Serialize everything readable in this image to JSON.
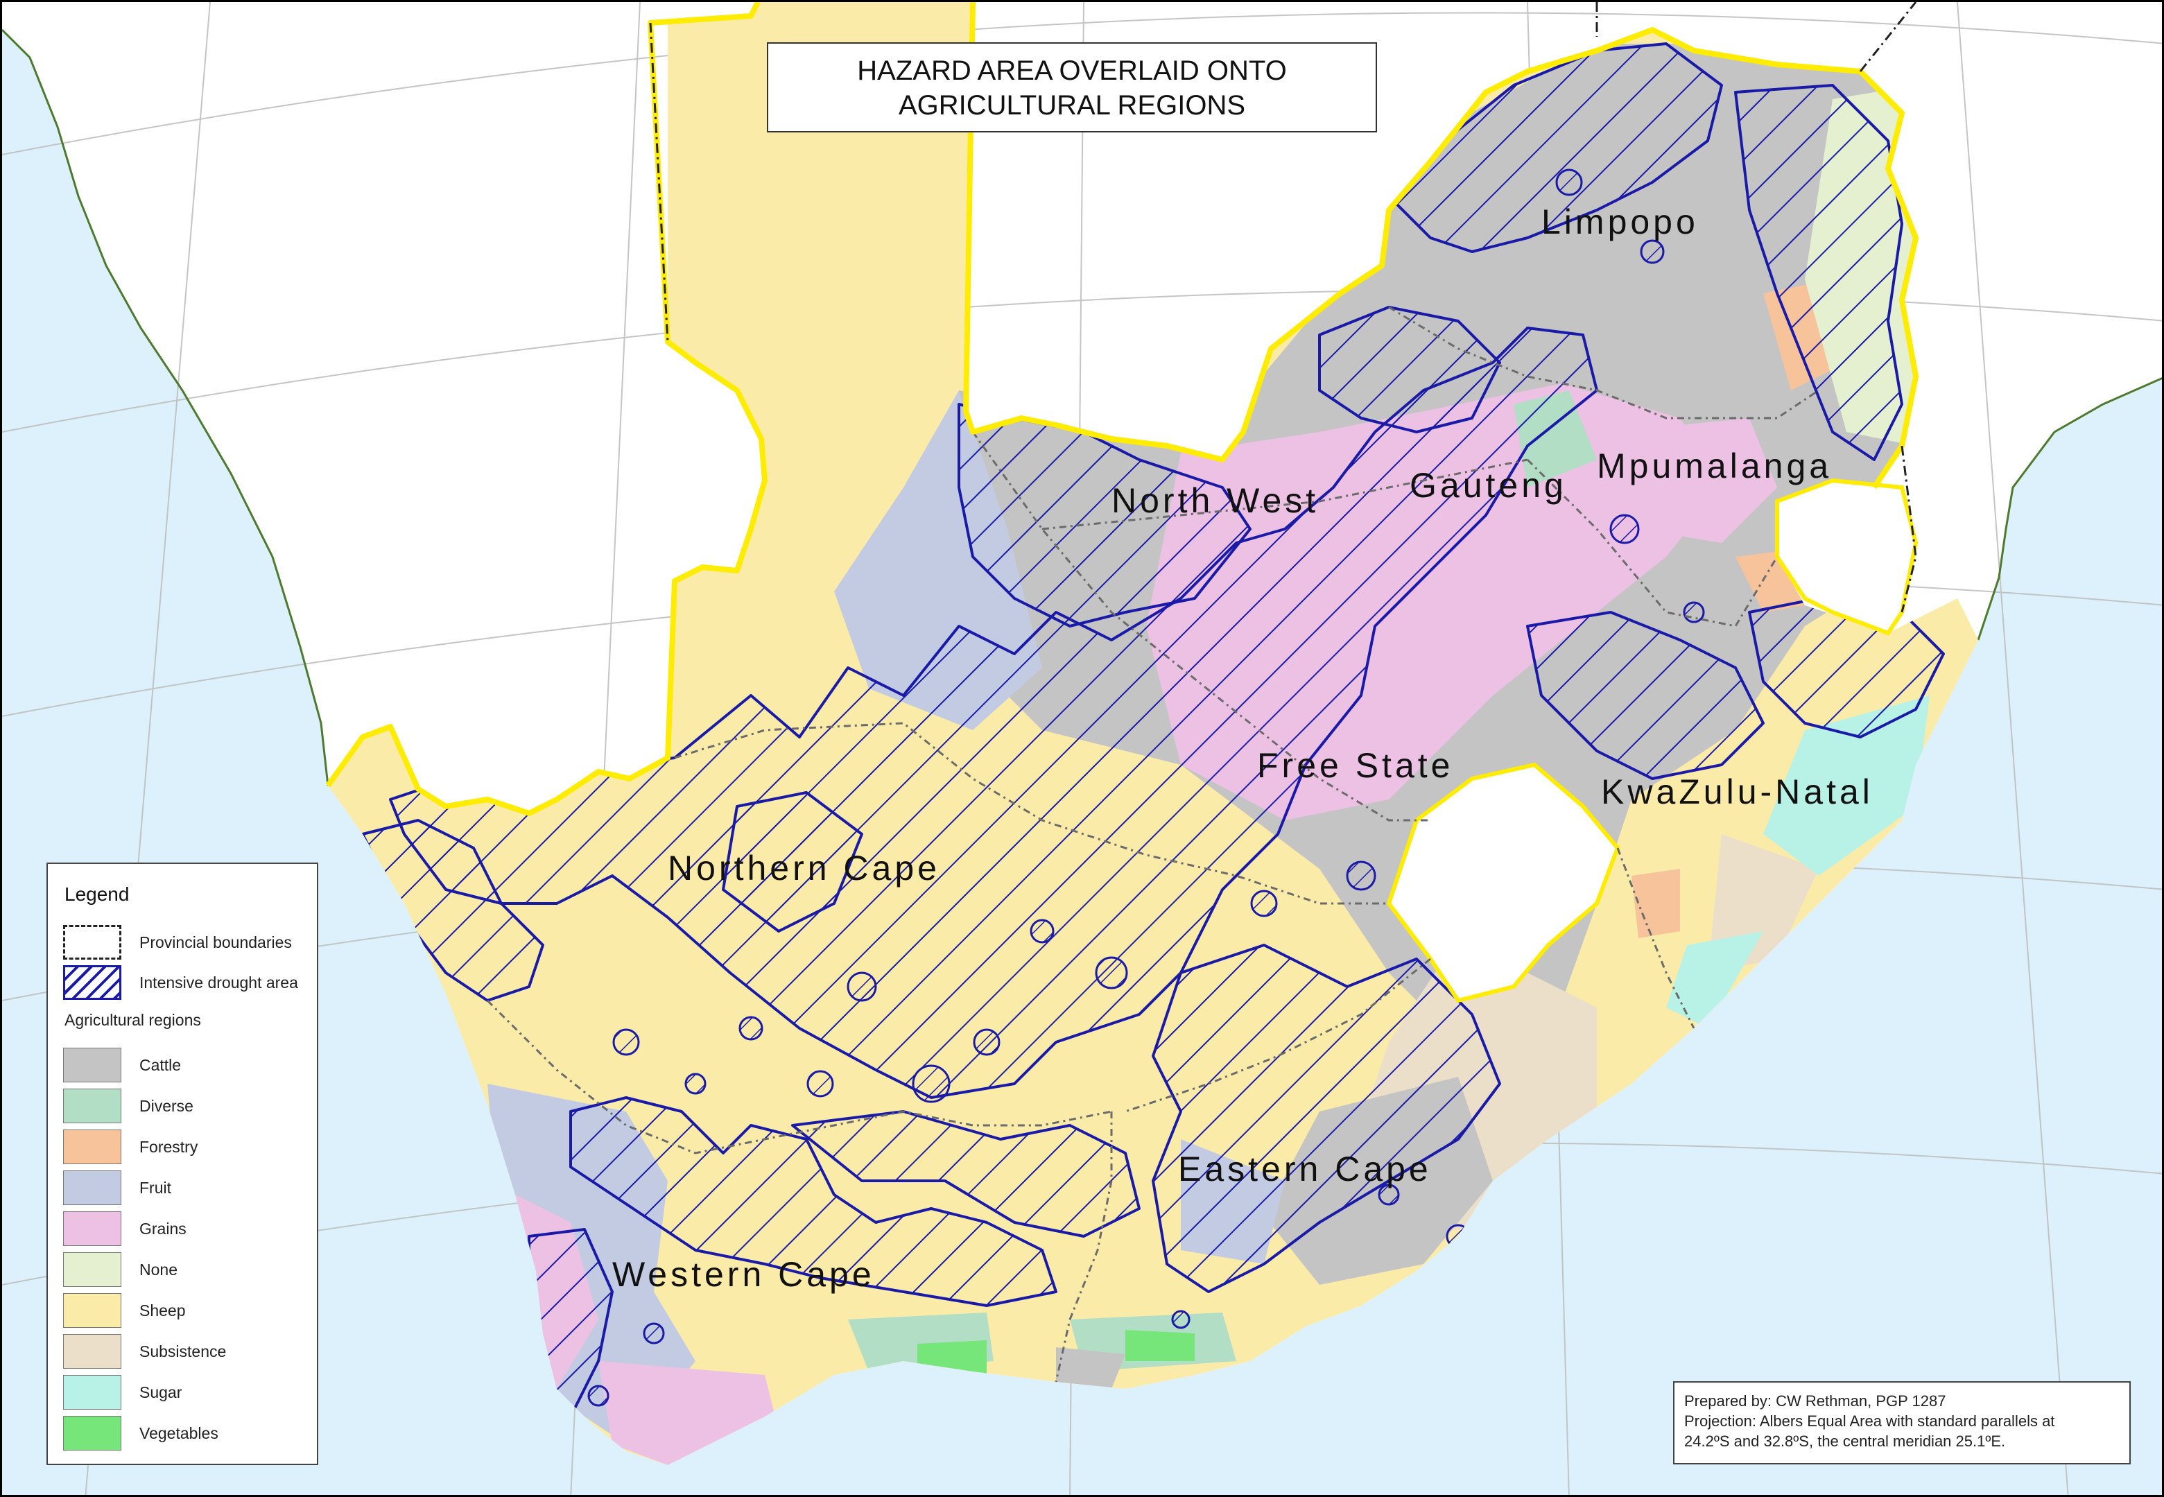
{
  "title": {
    "line1": "HAZARD AREA OVERLAID ONTO",
    "line2": "AGRICULTURAL REGIONS"
  },
  "provinces": [
    {
      "key": "limpopo",
      "label": "Limpopo"
    },
    {
      "key": "north_west",
      "label": "North West"
    },
    {
      "key": "gauteng",
      "label": "Gauteng"
    },
    {
      "key": "mpumalanga",
      "label": "Mpumalanga"
    },
    {
      "key": "free_state",
      "label": "Free State"
    },
    {
      "key": "kwazulu_natal",
      "label": "KwaZulu-Natal"
    },
    {
      "key": "northern_cape",
      "label": "Northern Cape"
    },
    {
      "key": "eastern_cape",
      "label": "Eastern Cape"
    },
    {
      "key": "western_cape",
      "label": "Western Cape"
    }
  ],
  "legend": {
    "title": "Legend",
    "boundary_label": "Provincial boundaries",
    "drought_label": "Intensive drought area",
    "regions_heading": "Agricultural regions",
    "regions": [
      {
        "label": "Cattle",
        "color": "#c4c4c4"
      },
      {
        "label": "Diverse",
        "color": "#b2dec5"
      },
      {
        "label": "Forestry",
        "color": "#f7c39b"
      },
      {
        "label": "Fruit",
        "color": "#c3cbe3"
      },
      {
        "label": "Grains",
        "color": "#ecc1e4"
      },
      {
        "label": "None",
        "color": "#e4f0cf"
      },
      {
        "label": "Sheep",
        "color": "#fbeba8"
      },
      {
        "label": "Subsistence",
        "color": "#ebdfca"
      },
      {
        "label": "Sugar",
        "color": "#b8f1e5"
      },
      {
        "label": "Vegetables",
        "color": "#77e67a"
      }
    ]
  },
  "credits": {
    "line1": "Prepared by: CW Rethman, PGP 1287",
    "line2": "Projection: Albers Equal Area with standard parallels at",
    "line3": "24.2ºS  and 32.8ºS, the central meridian 25.1ºE."
  },
  "colors": {
    "sea": "#dcf1fb",
    "land_outside": "#ffffff",
    "boundary_yellow": "#ffec00",
    "hatch_blue": "#1a1aa8",
    "coast": "#4d7a2e"
  }
}
